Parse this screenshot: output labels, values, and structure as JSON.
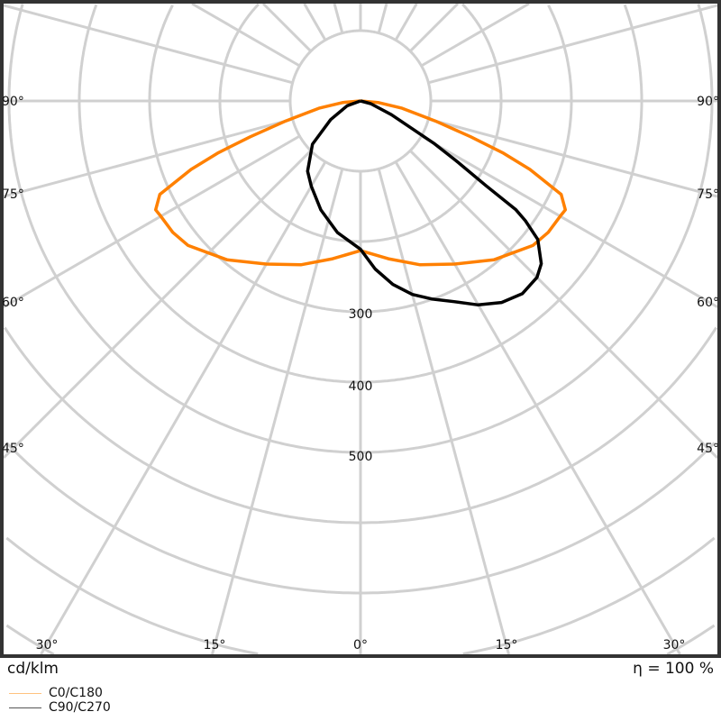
{
  "chart_data": {
    "type": "polar",
    "unit": "cd/klm",
    "efficiency": "η = 100 %",
    "radial_ticks": [
      100,
      200,
      300,
      400,
      500,
      600,
      700,
      800,
      900
    ],
    "radial_tick_labels": [
      "300",
      "400",
      "500"
    ],
    "angle_labels_side": [
      "90°",
      "75°",
      "60°",
      "45°"
    ],
    "angle_labels_bottom": [
      "30°",
      "15°",
      "0°",
      "15°",
      "30°"
    ],
    "grid": true,
    "legend_position": "bottom-left",
    "series": [
      {
        "name": "C0/C180",
        "color": "#ff8000",
        "legend_color": "#ffc27f",
        "c0": {
          "gamma": [
            0,
            10,
            20,
            30,
            40,
            50,
            55,
            60,
            62,
            65,
            68,
            70,
            72,
            75,
            80,
            85,
            90
          ],
          "value": [
            213,
            228,
            248,
            268,
            295,
            320,
            326,
            328,
            330,
            315,
            260,
            215,
            165,
            110,
            60,
            25,
            0
          ]
        },
        "c180": {
          "gamma": [
            0,
            10,
            20,
            30,
            40,
            50,
            55,
            60,
            62,
            65,
            68,
            70,
            72,
            75,
            80,
            85,
            90
          ],
          "value": [
            213,
            228,
            248,
            268,
            295,
            320,
            326,
            328,
            330,
            315,
            260,
            215,
            165,
            110,
            60,
            25,
            0
          ]
        }
      },
      {
        "name": "C90/C270",
        "color": "#000000",
        "legend_color": "#555555",
        "c90": {
          "gamma": [
            0,
            5,
            10,
            15,
            20,
            25,
            30,
            35,
            40,
            45,
            48,
            52,
            54,
            55,
            56,
            58,
            60,
            66,
            75,
            90
          ],
          "value": [
            211,
            240,
            265,
            285,
            300,
            315,
            335,
            350,
            358,
            355,
            346,
            320,
            290,
            270,
            215,
            160,
            120,
            48,
            15,
            0
          ]
        },
        "c270": {
          "gamma": [
            0,
            10,
            20,
            30,
            37,
            48,
            58,
            70,
            90
          ],
          "value": [
            211,
            190,
            165,
            140,
            125,
            92,
            50,
            20,
            0
          ]
        }
      }
    ]
  }
}
